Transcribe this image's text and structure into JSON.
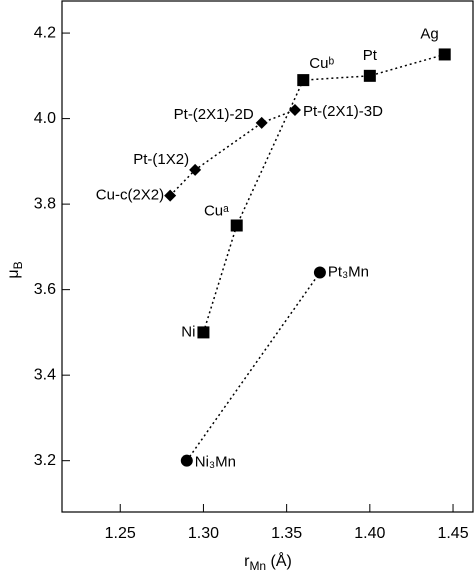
{
  "chart_data": {
    "type": "scatter",
    "x_label": [
      "r",
      "Mn",
      " (Å)"
    ],
    "y_label": [
      "μ",
      "B"
    ],
    "xlim": [
      1.215,
      1.462
    ],
    "ylim": [
      3.08,
      4.275
    ],
    "xticks": [
      1.25,
      {
        "value": 1.3,
        "label": "1.30"
      },
      1.35,
      {
        "value": 1.4,
        "label": "1.40"
      },
      1.45
    ],
    "yticks": [
      {
        "value": 3.2,
        "label": "3.2"
      },
      3.4,
      3.6,
      3.8,
      {
        "value": 4.0,
        "label": "4.0"
      },
      4.2
    ],
    "series": [
      {
        "marker": "square",
        "color": "#000000",
        "x": [
          1.3,
          1.32,
          1.36,
          1.4,
          1.445
        ],
        "values": [
          3.5,
          3.75,
          4.09,
          4.1,
          4.15
        ],
        "point_labels": [
          "Ni",
          "Cuᵃ",
          "Cuᵇ",
          "Pt",
          "Ag"
        ]
      },
      {
        "marker": "diamond",
        "color": "#000000",
        "x": [
          1.28,
          1.295,
          1.335,
          1.355
        ],
        "values": [
          3.82,
          3.88,
          3.99,
          4.02
        ],
        "point_labels": [
          "Cu-c(2X2)",
          "Pt-(1X2)",
          "Pt-(2X1)-2D",
          "Pt-(2X1)-3D"
        ]
      },
      {
        "marker": "circle",
        "color": "#000000",
        "x": [
          1.29,
          1.37
        ],
        "values": [
          3.2,
          3.64
        ],
        "point_labels": [
          "Ni₃Mn",
          "Pt₃Mn"
        ]
      }
    ]
  }
}
